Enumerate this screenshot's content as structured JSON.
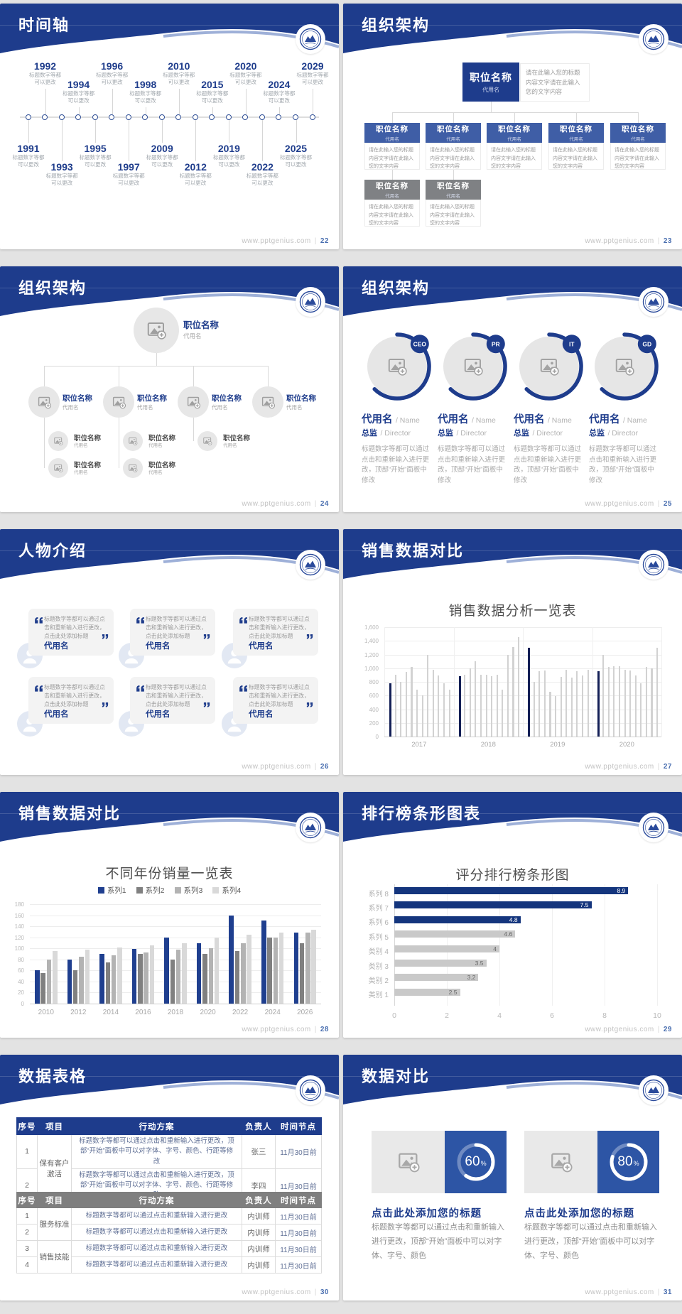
{
  "site": "www.pptgenius.com",
  "footer_sep": "|",
  "colors": {
    "header_navy": "#1e3c8c",
    "header_accent": "#93a7d4",
    "navy_text": "#1f3d8c",
    "box_blue": "#3f5ea6",
    "box_gray": "#7f8184",
    "panel_blue": "#2d55a5"
  },
  "chart_data": [
    {
      "id": "sales-analysis",
      "type": "bar",
      "title": "销售数据分析一览表",
      "ylim": [
        0,
        1600
      ],
      "ytick_step": 200,
      "groups": [
        "2017",
        "2018",
        "2019",
        "2020"
      ],
      "values": [
        780,
        900,
        800,
        950,
        1020,
        690,
        600,
        1200,
        980,
        890,
        780,
        690,
        880,
        900,
        1000,
        1100,
        900,
        900,
        880,
        900,
        690,
        1200,
        1310,
        1450,
        1300,
        800,
        960,
        970,
        660,
        590,
        870,
        980,
        860,
        960,
        890,
        980,
        960,
        1200,
        1020,
        1030,
        1030,
        980,
        970,
        890,
        780,
        1020,
        1000,
        1300
      ],
      "highlight_indices": [
        0,
        12,
        24,
        36
      ],
      "highlight_color": "#131f56",
      "bar_color": "#d2d2d2",
      "grid": true
    },
    {
      "id": "yearly-sales",
      "type": "bar",
      "title": "不同年份销量一览表",
      "categories": [
        "2010",
        "2012",
        "2014",
        "2016",
        "2018",
        "2020",
        "2022",
        "2024",
        "2026"
      ],
      "series": [
        {
          "name": "系列1",
          "color": "#1f3f8f",
          "values": [
            60,
            80,
            90,
            99,
            119,
            109,
            160,
            150,
            129
          ]
        },
        {
          "name": "系列2",
          "color": "#808080",
          "values": [
            55,
            60,
            75,
            90,
            80,
            90,
            95,
            119,
            109
          ]
        },
        {
          "name": "系列3",
          "color": "#b3b3b3",
          "values": [
            80,
            85,
            88,
            92,
            98,
            100,
            109,
            119,
            129
          ]
        },
        {
          "name": "系列4",
          "color": "#d9d9d9",
          "values": [
            95,
            98,
            101,
            105,
            109,
            119,
            125,
            129,
            134
          ]
        }
      ],
      "ylim": [
        0,
        180
      ],
      "ytick_step": 20,
      "legend_position": "top",
      "grid": true
    },
    {
      "id": "score-ranking",
      "type": "bar",
      "orientation": "horizontal",
      "title": "评分排行榜条形图",
      "categories": [
        "系列 8",
        "系列 7",
        "系列 6",
        "系列 5",
        "类别 4",
        "类别 3",
        "类别 2",
        "类别 1"
      ],
      "values": [
        8.9,
        7.5,
        4.8,
        4.6,
        4,
        3.5,
        3.2,
        2.5
      ],
      "bar_colors": [
        "#14357d",
        "#14357d",
        "#14357d",
        "#c9c9c9",
        "#c9c9c9",
        "#c9c9c9",
        "#c9c9c9",
        "#c9c9c9"
      ],
      "xlim": [
        0,
        10
      ],
      "xtick_step": 2,
      "grid": true
    },
    {
      "id": "percent-donuts",
      "type": "pie",
      "values": [
        60,
        80
      ],
      "labels": [
        "60%",
        "80%"
      ]
    }
  ],
  "slides": [
    {
      "kind": "timeline",
      "title": "时间轴",
      "page": "22",
      "caption_line1": "标题数字等都",
      "caption_line2": "可以更改",
      "years": [
        "1991",
        "1992",
        "1993",
        "1994",
        "1995",
        "1996",
        "1997",
        "1998",
        "2009",
        "2010",
        "2012",
        "2015",
        "2019",
        "2020",
        "2022",
        "2024",
        "2025",
        "2029"
      ]
    },
    {
      "kind": "org_boxes",
      "title": "组织架构",
      "page": "23",
      "root_name": "职位名称",
      "root_alias": "代用名",
      "root_desc": "请在此输入您的标题内容文字请在此输入您的文字内容",
      "child_name": "职位名称",
      "child_alias": "代用名",
      "child_desc": "请在此输入您的标题内容文字请在此输入您的文字内容",
      "blue_children": 5,
      "gray_children": 2
    },
    {
      "kind": "org_photos",
      "title": "组织架构",
      "page": "24",
      "node_name": "职位名称",
      "node_alias": "代用名",
      "level1_count": 4,
      "sub_counts": [
        2,
        2,
        1,
        0
      ]
    },
    {
      "kind": "org_roles",
      "title": "组织架构",
      "page": "25",
      "badges": [
        "CEO",
        "PR",
        "IT",
        "GD"
      ],
      "person_name": "代用名",
      "person_name_en": "Name",
      "person_role": "总监",
      "person_role_en": "Director",
      "desc": "标题数字等都可以通过点击和重新输入进行更改，顶部“开始”面板中修改"
    },
    {
      "kind": "people",
      "title": "人物介绍",
      "page": "26",
      "quote": "标题数字等都可以通过点击和重新输入进行更改，点击此处添加标题",
      "alias": "代用名",
      "card_count": 6
    },
    {
      "kind": "chart_needle",
      "title": "销售数据对比",
      "page": "27",
      "chart_ref": 0
    },
    {
      "kind": "chart_grouped",
      "title": "销售数据对比",
      "page": "28",
      "chart_ref": 1
    },
    {
      "kind": "chart_ranking",
      "title": "排行榜条形图表",
      "page": "29",
      "chart_ref": 2
    },
    {
      "kind": "tables",
      "title": "数据表格",
      "page": "30",
      "headers": [
        "序号",
        "项目",
        "行动方案",
        "负责人",
        "时间节点"
      ],
      "table_blue": {
        "project": "保有客户激活",
        "action": "标题数字等都可以通过点击和重新输入进行更改，顶部“开始”面板中可以对字体、字号、颜色、行距等修改",
        "rows": [
          {
            "no": "1",
            "owner": "张三",
            "deadline": "11月30日前"
          },
          {
            "no": "2",
            "owner": "李四",
            "deadline": "11月30日前"
          }
        ]
      },
      "table_gray": {
        "projects": [
          "服务标准",
          "销售技能"
        ],
        "action": "标题数字等都可以通过点击和重新输入进行更改",
        "rows": [
          {
            "no": "1",
            "owner": "内训师",
            "deadline": "11月30日前"
          },
          {
            "no": "2",
            "owner": "内训师",
            "deadline": "11月30日前"
          },
          {
            "no": "3",
            "owner": "内训师",
            "deadline": "11月30日前"
          },
          {
            "no": "4",
            "owner": "内训师",
            "deadline": "11月30日前"
          }
        ]
      }
    },
    {
      "kind": "compare",
      "title": "数据对比",
      "page": "31",
      "card_title": "点击此处添加您的标题",
      "card_desc": "标题数字等都可以通过点击和重新输入进行更改，顶部“开始”面板中可以对字体、字号、颜色",
      "percents": [
        "60",
        "80"
      ]
    }
  ]
}
